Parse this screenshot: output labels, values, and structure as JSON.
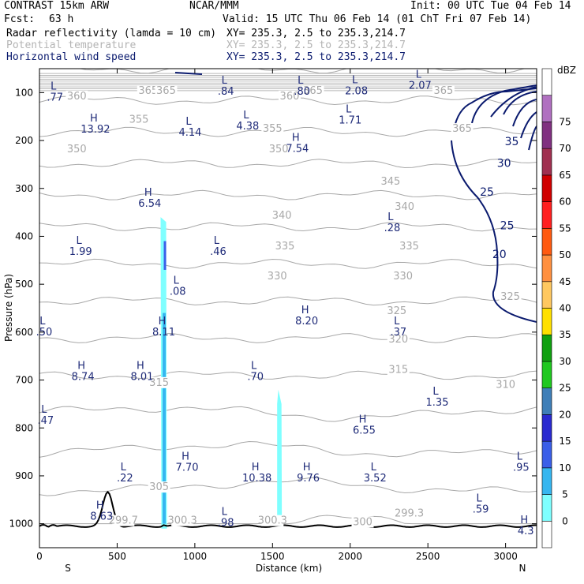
{
  "header": {
    "model": "CONTRAST 15km ARW",
    "org": "NCAR/MMM",
    "init": "Init: 00 UTC Tue 04 Feb 14",
    "fcst_label": "Fcst:",
    "fcst_value": "63 h",
    "valid": "Valid: 15 UTC Thu 06 Feb 14 (01 ChT Fri 07 Feb 14)",
    "fields": [
      {
        "name": "Radar reflectivity (lamda = 10 cm)",
        "xy": "XY= 235.3,  2.5 to 235.3,214.7",
        "color": "#000000"
      },
      {
        "name": "Potential temperature",
        "xy": "XY= 235.3,  2.5 to 235.3,214.7",
        "color": "#b4b4b4"
      },
      {
        "name": "Horizontal wind speed",
        "xy": "XY= 235.3,  2.5 to 235.3,214.7",
        "color": "#0a1a6e"
      }
    ]
  },
  "chart_data": {
    "type": "cross-section",
    "xlabel": "Distance (km)",
    "ylabel": "Pressure (hPa)",
    "x_ticks": [
      "0",
      "500",
      "1000",
      "1500",
      "2000",
      "2500",
      "3000"
    ],
    "y_ticks": [
      "100",
      "200",
      "300",
      "400",
      "500",
      "600",
      "700",
      "800",
      "900",
      "1000"
    ],
    "x_end_labels": {
      "left": "S",
      "right": "N"
    },
    "xlim": [
      0,
      3200
    ],
    "ylim": [
      50,
      1050
    ],
    "colorbar": {
      "unit": "dBZ",
      "levels": [
        "0",
        "5",
        "10",
        "15",
        "20",
        "25",
        "30",
        "35",
        "40",
        "45",
        "50",
        "55",
        "60",
        "65",
        "70",
        "75"
      ],
      "colors": [
        "#ffffff",
        "#7fffff",
        "#36b6f0",
        "#3a5ee8",
        "#2a2ad0",
        "#3f7fb8",
        "#20c820",
        "#10a010",
        "#ffe000",
        "#ffc860",
        "#ff9040",
        "#ff5a10",
        "#ff2020",
        "#d00000",
        "#a03050",
        "#803080",
        "#b070c0",
        "#ffffff"
      ]
    },
    "highs_lows": [
      {
        "letter": "L",
        "value": ".77",
        "x": 100,
        "p": 115
      },
      {
        "letter": "L",
        "value": ".84",
        "x": 1200,
        "p": 103
      },
      {
        "letter": "L",
        "value": ".80",
        "x": 1690,
        "p": 103
      },
      {
        "letter": "L",
        "value": "2.08",
        "x": 2040,
        "p": 102
      },
      {
        "letter": "L",
        "value": "2.07",
        "x": 2450,
        "p": 90
      },
      {
        "letter": "H",
        "value": "13.92",
        "x": 360,
        "p": 182
      },
      {
        "letter": "L",
        "value": "4.14",
        "x": 970,
        "p": 188
      },
      {
        "letter": "L",
        "value": "4.38",
        "x": 1340,
        "p": 175
      },
      {
        "letter": "L",
        "value": "1.71",
        "x": 2000,
        "p": 163
      },
      {
        "letter": "H",
        "value": "7.54",
        "x": 1660,
        "p": 222
      },
      {
        "letter": "H",
        "value": "6.54",
        "x": 710,
        "p": 337
      },
      {
        "letter": "L",
        "value": ".28",
        "x": 2270,
        "p": 388
      },
      {
        "letter": "L",
        "value": "1.99",
        "x": 265,
        "p": 437
      },
      {
        "letter": "L",
        "value": ".46",
        "x": 1150,
        "p": 437
      },
      {
        "letter": "L",
        "value": ".08",
        "x": 890,
        "p": 520
      },
      {
        "letter": "H",
        "value": "8.20",
        "x": 1720,
        "p": 582
      },
      {
        "letter": "L",
        "value": ".50",
        "x": 30,
        "p": 605
      },
      {
        "letter": "H",
        "value": "8.11",
        "x": 800,
        "p": 605
      },
      {
        "letter": "L",
        "value": ".37",
        "x": 2310,
        "p": 605
      },
      {
        "letter": "H",
        "value": "8.74",
        "x": 280,
        "p": 698
      },
      {
        "letter": "H",
        "value": "8.01",
        "x": 660,
        "p": 698
      },
      {
        "letter": "L",
        "value": ".70",
        "x": 1390,
        "p": 698
      },
      {
        "letter": "L",
        "value": "1.35",
        "x": 2560,
        "p": 752
      },
      {
        "letter": "L",
        "value": ".47",
        "x": 40,
        "p": 790
      },
      {
        "letter": "H",
        "value": "6.55",
        "x": 2090,
        "p": 810
      },
      {
        "letter": "H",
        "value": "7.70",
        "x": 950,
        "p": 888
      },
      {
        "letter": "L",
        "value": ".22",
        "x": 550,
        "p": 910
      },
      {
        "letter": "H",
        "value": "10.38",
        "x": 1400,
        "p": 910
      },
      {
        "letter": "H",
        "value": "9.76",
        "x": 1730,
        "p": 910
      },
      {
        "letter": "L",
        "value": "3.52",
        "x": 2160,
        "p": 910
      },
      {
        "letter": "L",
        "value": ".95",
        "x": 3100,
        "p": 888
      },
      {
        "letter": "L",
        "value": ".59",
        "x": 2840,
        "p": 975
      },
      {
        "letter": "H",
        "value": "8.63",
        "x": 400,
        "p": 990
      },
      {
        "letter": "L",
        "value": ".98",
        "x": 1200,
        "p": 1003
      },
      {
        "letter": "H",
        "value": "4.3",
        "x": 3130,
        "p": 1020
      }
    ],
    "theta_labels": [
      {
        "value": "360",
        "x": 240,
        "p": 114
      },
      {
        "value": "365",
        "x": 700,
        "p": 103
      },
      {
        "value": "365",
        "x": 815,
        "p": 103
      },
      {
        "value": "360",
        "x": 1610,
        "p": 114
      },
      {
        "value": "365",
        "x": 1760,
        "p": 103
      },
      {
        "value": "365",
        "x": 2600,
        "p": 103
      },
      {
        "value": "355",
        "x": 640,
        "p": 163
      },
      {
        "value": "355",
        "x": 1500,
        "p": 182
      },
      {
        "value": "365",
        "x": 2720,
        "p": 182
      },
      {
        "value": "350",
        "x": 240,
        "p": 225
      },
      {
        "value": "350",
        "x": 1540,
        "p": 225
      },
      {
        "value": "345",
        "x": 2260,
        "p": 292
      },
      {
        "value": "340",
        "x": 1560,
        "p": 363
      },
      {
        "value": "340",
        "x": 2350,
        "p": 345
      },
      {
        "value": "335",
        "x": 1580,
        "p": 427
      },
      {
        "value": "335",
        "x": 2380,
        "p": 427
      },
      {
        "value": "330",
        "x": 1530,
        "p": 490
      },
      {
        "value": "330",
        "x": 2340,
        "p": 490
      },
      {
        "value": "325",
        "x": 2300,
        "p": 562
      },
      {
        "value": "325",
        "x": 3030,
        "p": 533
      },
      {
        "value": "320",
        "x": 2310,
        "p": 622
      },
      {
        "value": "315",
        "x": 770,
        "p": 712
      },
      {
        "value": "315",
        "x": 2310,
        "p": 685
      },
      {
        "value": "310",
        "x": 3000,
        "p": 716
      },
      {
        "value": "305",
        "x": 770,
        "p": 930
      },
      {
        "value": "299.7",
        "x": 540,
        "p": 1000
      },
      {
        "value": "300.3",
        "x": 920,
        "p": 1000
      },
      {
        "value": "300.3",
        "x": 1500,
        "p": 1000
      },
      {
        "value": "299.3",
        "x": 2380,
        "p": 985
      },
      {
        "value": "300",
        "x": 2080,
        "p": 1003
      }
    ],
    "wind_labels": [
      {
        "value": "35",
        "x": 3040,
        "p": 210
      },
      {
        "value": "30",
        "x": 2990,
        "p": 255
      },
      {
        "value": "25",
        "x": 2880,
        "p": 315
      },
      {
        "value": "25",
        "x": 3010,
        "p": 385
      },
      {
        "value": "20",
        "x": 2960,
        "p": 445
      }
    ],
    "theta_levels": [
      300,
      305,
      310,
      315,
      320,
      325,
      330,
      335,
      340,
      345,
      350,
      355,
      360,
      365
    ],
    "wind_levels": [
      20,
      25,
      30,
      35
    ],
    "reflectivity_cells": [
      {
        "x_center": 800,
        "p_top": 360,
        "p_bottom": 1010,
        "max_dbz": 15
      },
      {
        "x_center": 1545,
        "p_top": 720,
        "p_bottom": 1005,
        "max_dbz": 5
      }
    ],
    "terrain_peaks": [
      {
        "x": 440,
        "p": 935
      },
      {
        "x": 800,
        "p": 1002
      }
    ],
    "surface_pressure": 1005
  }
}
